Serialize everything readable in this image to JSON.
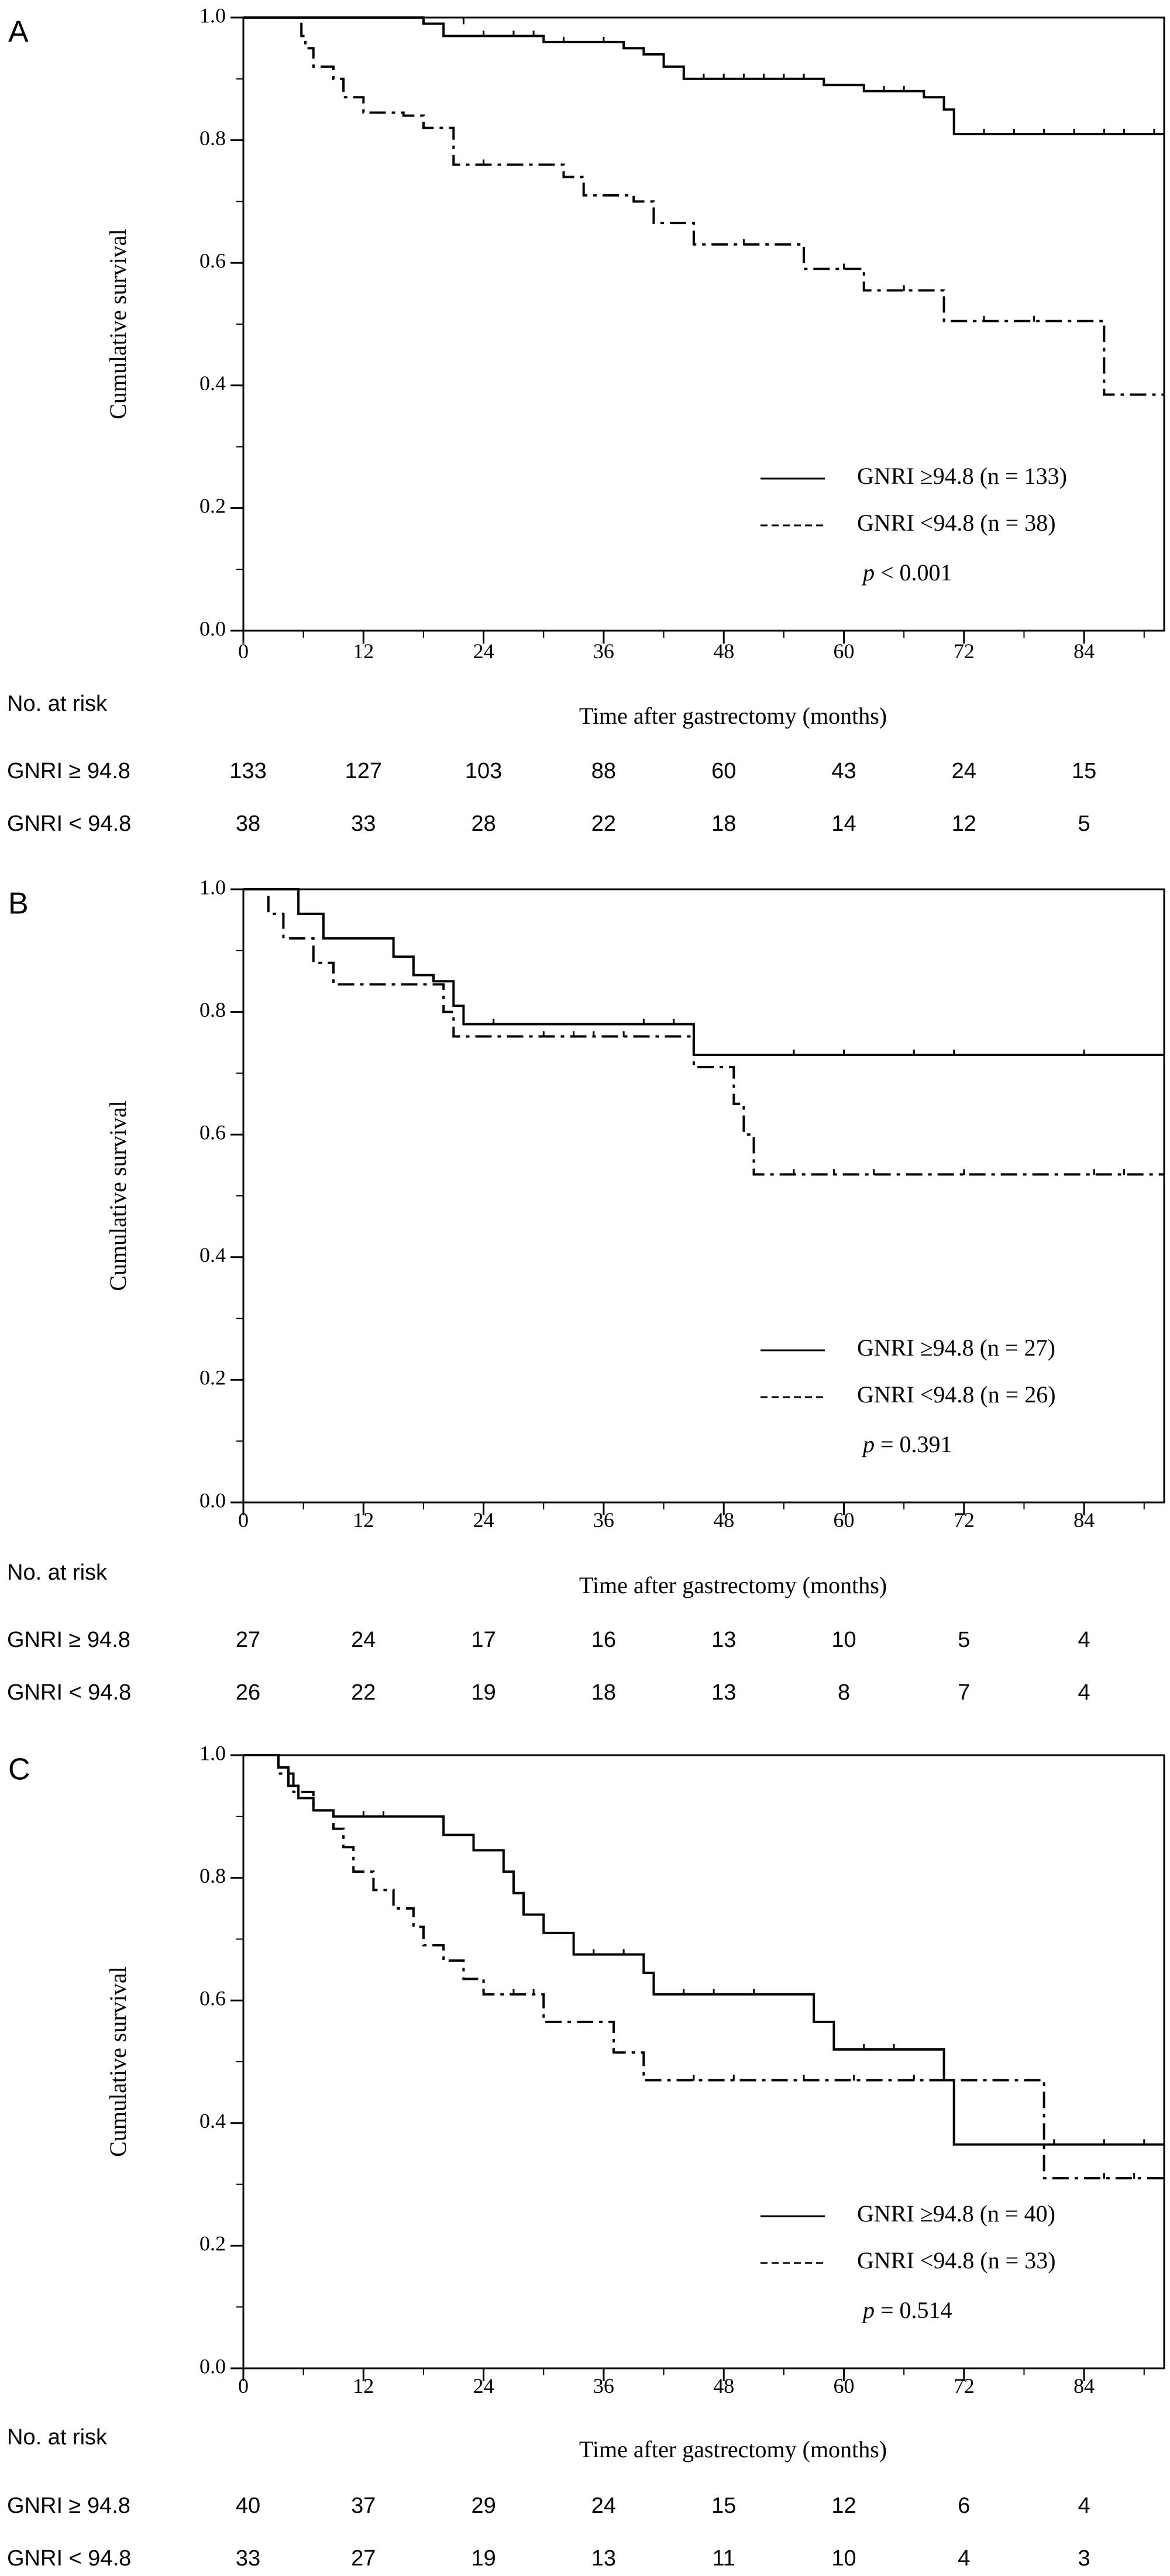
{
  "figure": {
    "colors": {
      "ink": "#000000",
      "background": "#ffffff"
    }
  },
  "chart_data": [
    {
      "panel": "A",
      "type": "line",
      "subtype": "kaplan-meier",
      "title": "",
      "xlabel": "Time after gastrectomy (months)",
      "ylabel": "Cumulative survival",
      "xlim": [
        0,
        92
      ],
      "ylim": [
        0,
        1
      ],
      "xticks": [
        0,
        12,
        24,
        36,
        48,
        60,
        72,
        84
      ],
      "yticks": [
        "0.0",
        "0.2",
        "0.4",
        "0.6",
        "0.8",
        "1.0"
      ],
      "grid": false,
      "legend_position": "bottom-right",
      "p_label": "p",
      "p_value": "< 0.001",
      "series": [
        {
          "name": "GNRI ≥94.8 (n = 133)",
          "style": "solid",
          "steps": [
            [
              0,
              1.0
            ],
            [
              18,
              0.99
            ],
            [
              20,
              0.97
            ],
            [
              30,
              0.96
            ],
            [
              38,
              0.95
            ],
            [
              40,
              0.94
            ],
            [
              42,
              0.92
            ],
            [
              44,
              0.9
            ],
            [
              58,
              0.89
            ],
            [
              62,
              0.88
            ],
            [
              68,
              0.87
            ],
            [
              70,
              0.85
            ],
            [
              71,
              0.81
            ],
            [
              92,
              0.81
            ]
          ],
          "censors": [
            [
              22,
              0.99
            ],
            [
              24,
              0.97
            ],
            [
              27,
              0.97
            ],
            [
              29,
              0.97
            ],
            [
              32,
              0.96
            ],
            [
              36,
              0.96
            ],
            [
              40,
              0.94
            ],
            [
              46,
              0.9
            ],
            [
              48,
              0.9
            ],
            [
              50,
              0.9
            ],
            [
              52,
              0.9
            ],
            [
              54,
              0.9
            ],
            [
              56,
              0.9
            ],
            [
              64,
              0.88
            ],
            [
              66,
              0.88
            ],
            [
              74,
              0.81
            ],
            [
              77,
              0.81
            ],
            [
              80,
              0.81
            ],
            [
              83,
              0.81
            ],
            [
              86,
              0.81
            ],
            [
              88,
              0.81
            ],
            [
              91,
              0.81
            ]
          ]
        },
        {
          "name": "GNRI <94.8 (n = 38)",
          "style": "dash-dot",
          "steps": [
            [
              0,
              1.0
            ],
            [
              5.5,
              1.0
            ],
            [
              5.8,
              0.97
            ],
            [
              6.2,
              0.95
            ],
            [
              7,
              0.92
            ],
            [
              9,
              0.9
            ],
            [
              10,
              0.87
            ],
            [
              12,
              0.845
            ],
            [
              16,
              0.84
            ],
            [
              18,
              0.82
            ],
            [
              21,
              0.76
            ],
            [
              27,
              0.76
            ],
            [
              32,
              0.74
            ],
            [
              34,
              0.71
            ],
            [
              39,
              0.7
            ],
            [
              41,
              0.665
            ],
            [
              45,
              0.63
            ],
            [
              52,
              0.63
            ],
            [
              56,
              0.59
            ],
            [
              62,
              0.555
            ],
            [
              70,
              0.505
            ],
            [
              78,
              0.505
            ],
            [
              86,
              0.385
            ],
            [
              92,
              0.385
            ]
          ],
          "censors": [
            [
              24,
              0.76
            ],
            [
              45,
              0.63
            ],
            [
              50,
              0.63
            ],
            [
              60,
              0.59
            ],
            [
              66,
              0.555
            ],
            [
              74,
              0.505
            ],
            [
              79,
              0.505
            ]
          ]
        }
      ],
      "risk_table": {
        "title": "No. at risk",
        "times": [
          0,
          12,
          24,
          36,
          48,
          60,
          72,
          84
        ],
        "rows": [
          {
            "label": "GNRI ≥ 94.8",
            "values": [
              "133",
              "127",
              "103",
              "88",
              "60",
              "43",
              "24",
              "15"
            ]
          },
          {
            "label": "GNRI < 94.8",
            "values": [
              "38",
              "33",
              "28",
              "22",
              "18",
              "14",
              "12",
              "5"
            ]
          }
        ]
      }
    },
    {
      "panel": "B",
      "type": "line",
      "subtype": "kaplan-meier",
      "title": "",
      "xlabel": "Time after gastrectomy (months)",
      "ylabel": "Cumulative survival",
      "xlim": [
        0,
        92
      ],
      "ylim": [
        0,
        1
      ],
      "xticks": [
        0,
        12,
        24,
        36,
        48,
        60,
        72,
        84
      ],
      "yticks": [
        "0.0",
        "0.2",
        "0.4",
        "0.6",
        "0.8",
        "1.0"
      ],
      "grid": false,
      "legend_position": "bottom-right",
      "p_label": "p",
      "p_value": "= 0.391",
      "series": [
        {
          "name": "GNRI ≥94.8 (n = 27)",
          "style": "solid",
          "steps": [
            [
              0,
              1.0
            ],
            [
              5.5,
              0.96
            ],
            [
              8,
              0.92
            ],
            [
              14,
              0.92
            ],
            [
              15,
              0.89
            ],
            [
              17,
              0.86
            ],
            [
              19,
              0.85
            ],
            [
              21,
              0.81
            ],
            [
              22,
              0.78
            ],
            [
              44,
              0.78
            ],
            [
              45,
              0.73
            ],
            [
              92,
              0.73
            ]
          ],
          "censors": [
            [
              25,
              0.78
            ],
            [
              40,
              0.78
            ],
            [
              43,
              0.78
            ],
            [
              55,
              0.73
            ],
            [
              60,
              0.73
            ],
            [
              67,
              0.73
            ],
            [
              71,
              0.73
            ],
            [
              84,
              0.73
            ]
          ]
        },
        {
          "name": "GNRI <94.8 (n = 26)",
          "style": "dash-dot",
          "steps": [
            [
              0,
              1.0
            ],
            [
              2.5,
              0.96
            ],
            [
              4,
              0.92
            ],
            [
              7,
              0.88
            ],
            [
              9,
              0.845
            ],
            [
              14,
              0.845
            ],
            [
              20,
              0.8
            ],
            [
              21,
              0.76
            ],
            [
              44,
              0.76
            ],
            [
              45,
              0.71
            ],
            [
              49,
              0.65
            ],
            [
              50,
              0.6
            ],
            [
              51,
              0.535
            ],
            [
              92,
              0.535
            ]
          ],
          "censors": [
            [
              30,
              0.76
            ],
            [
              33,
              0.76
            ],
            [
              35,
              0.76
            ],
            [
              38,
              0.76
            ],
            [
              55,
              0.535
            ],
            [
              59,
              0.535
            ],
            [
              63,
              0.535
            ],
            [
              72,
              0.535
            ],
            [
              85,
              0.535
            ],
            [
              88,
              0.535
            ]
          ]
        }
      ],
      "risk_table": {
        "title": "No. at risk",
        "times": [
          0,
          12,
          24,
          36,
          48,
          60,
          72,
          84
        ],
        "rows": [
          {
            "label": "GNRI ≥ 94.8",
            "values": [
              "27",
              "24",
              "17",
              "16",
              "13",
              "10",
              "5",
              "4"
            ]
          },
          {
            "label": "GNRI < 94.8",
            "values": [
              "26",
              "22",
              "19",
              "18",
              "13",
              "8",
              "7",
              "4"
            ]
          }
        ]
      }
    },
    {
      "panel": "C",
      "type": "line",
      "subtype": "kaplan-meier",
      "title": "",
      "xlabel": "Time after gastrectomy (months)",
      "ylabel": "Cumulative survival",
      "xlim": [
        0,
        92
      ],
      "ylim": [
        0,
        1
      ],
      "xticks": [
        0,
        12,
        24,
        36,
        48,
        60,
        72,
        84
      ],
      "yticks": [
        "0.0",
        "0.2",
        "0.4",
        "0.6",
        "0.8",
        "1.0"
      ],
      "grid": false,
      "legend_position": "bottom-right",
      "p_label": "p",
      "p_value": "= 0.514",
      "series": [
        {
          "name": "GNRI ≥94.8 (n = 40)",
          "style": "solid",
          "steps": [
            [
              0,
              1.0
            ],
            [
              3.5,
              0.98
            ],
            [
              4.5,
              0.95
            ],
            [
              5.5,
              0.93
            ],
            [
              7,
              0.91
            ],
            [
              9,
              0.9
            ],
            [
              18,
              0.9
            ],
            [
              20,
              0.87
            ],
            [
              23,
              0.845
            ],
            [
              26,
              0.81
            ],
            [
              27,
              0.775
            ],
            [
              28,
              0.74
            ],
            [
              30,
              0.71
            ],
            [
              33,
              0.675
            ],
            [
              40,
              0.645
            ],
            [
              41,
              0.61
            ],
            [
              55,
              0.61
            ],
            [
              57,
              0.565
            ],
            [
              59,
              0.52
            ],
            [
              69,
              0.52
            ],
            [
              70,
              0.47
            ],
            [
              71,
              0.365
            ],
            [
              92,
              0.365
            ]
          ],
          "censors": [
            [
              12,
              0.9
            ],
            [
              14,
              0.9
            ],
            [
              35,
              0.675
            ],
            [
              38,
              0.675
            ],
            [
              44,
              0.61
            ],
            [
              47,
              0.61
            ],
            [
              51,
              0.61
            ],
            [
              62,
              0.52
            ],
            [
              65,
              0.52
            ],
            [
              81,
              0.365
            ],
            [
              86,
              0.365
            ],
            [
              90,
              0.365
            ]
          ]
        },
        {
          "name": "GNRI <94.8 (n = 33)",
          "style": "dash-dot",
          "steps": [
            [
              0,
              1.0
            ],
            [
              3.5,
              0.97
            ],
            [
              5,
              0.94
            ],
            [
              7,
              0.91
            ],
            [
              9,
              0.88
            ],
            [
              10,
              0.85
            ],
            [
              11,
              0.81
            ],
            [
              13,
              0.78
            ],
            [
              15,
              0.75
            ],
            [
              17,
              0.72
            ],
            [
              18,
              0.69
            ],
            [
              20,
              0.665
            ],
            [
              22,
              0.635
            ],
            [
              24,
              0.61
            ],
            [
              30,
              0.565
            ],
            [
              37,
              0.515
            ],
            [
              40,
              0.47
            ],
            [
              79,
              0.47
            ],
            [
              80,
              0.31
            ],
            [
              92,
              0.31
            ]
          ],
          "censors": [
            [
              27,
              0.61
            ],
            [
              29,
              0.61
            ],
            [
              45,
              0.47
            ],
            [
              49,
              0.47
            ],
            [
              56,
              0.47
            ],
            [
              61,
              0.47
            ],
            [
              67,
              0.47
            ],
            [
              86,
              0.31
            ],
            [
              89,
              0.31
            ]
          ]
        }
      ],
      "risk_table": {
        "title": "No. at risk",
        "times": [
          0,
          12,
          24,
          36,
          48,
          60,
          72,
          84
        ],
        "rows": [
          {
            "label": "GNRI ≥ 94.8",
            "values": [
              "40",
              "37",
              "29",
              "24",
              "15",
              "12",
              "6",
              "4"
            ]
          },
          {
            "label": "GNRI < 94.8",
            "values": [
              "33",
              "27",
              "19",
              "13",
              "11",
              "10",
              "4",
              "3"
            ]
          }
        ]
      }
    }
  ]
}
